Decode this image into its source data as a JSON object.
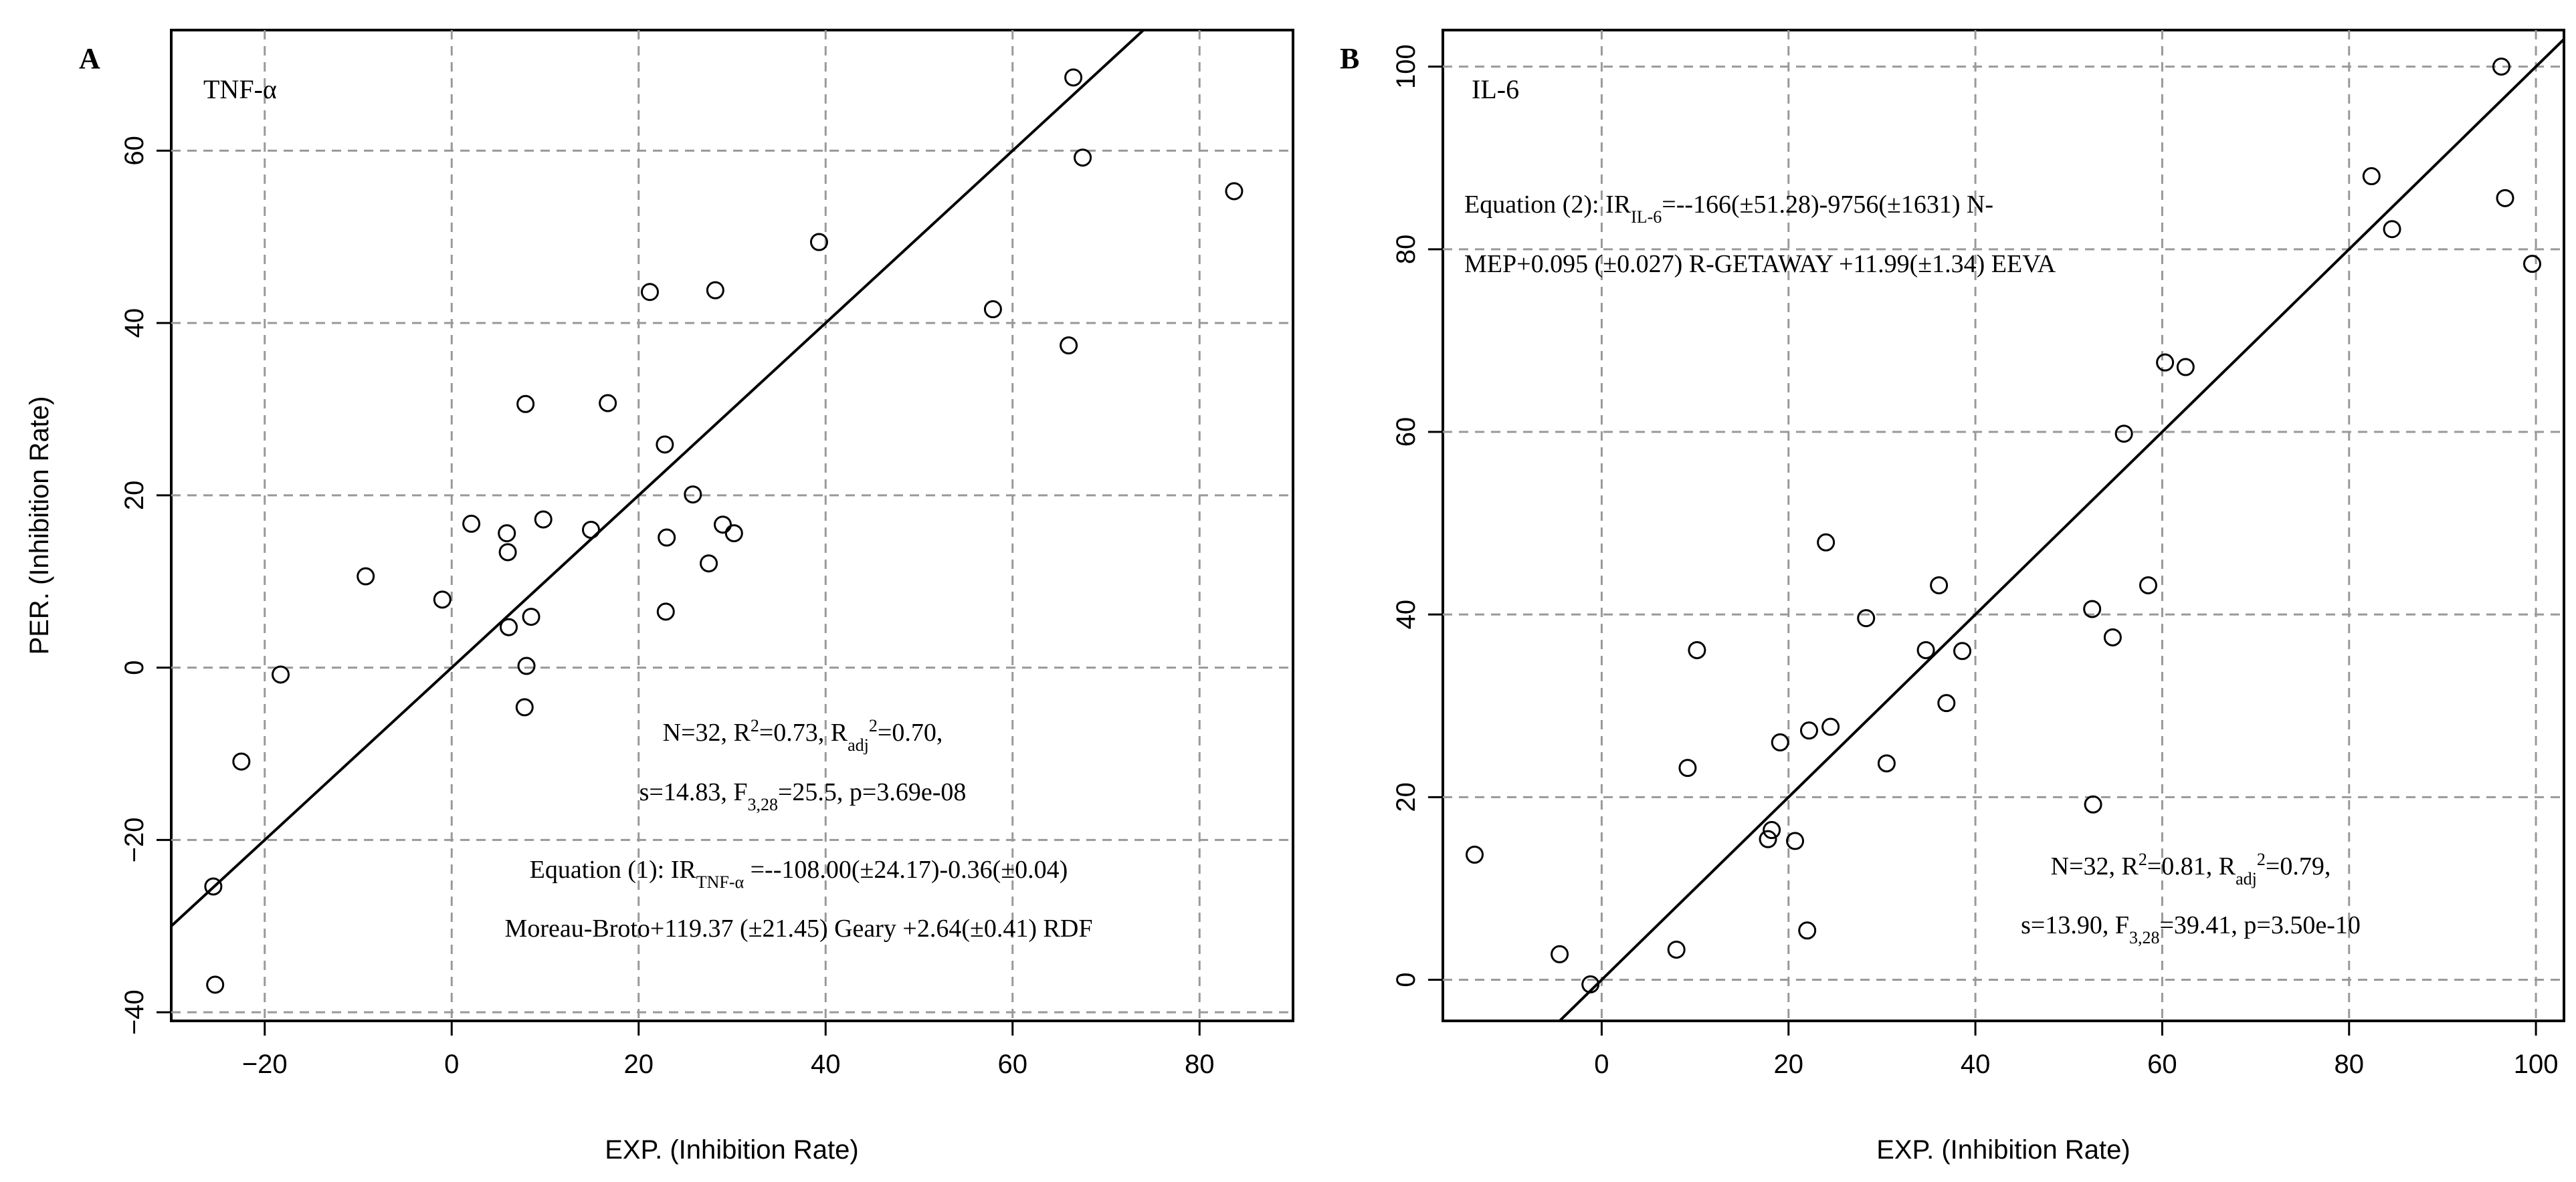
{
  "chart_data": [
    {
      "type": "scatter",
      "panel_label": "A",
      "inset_label": "TNF-α",
      "xlabel": "EXP. (Inhibition Rate)",
      "ylabel": "PER. (Inhibition Rate)",
      "xlim": [
        -30,
        90
      ],
      "ylim": [
        -41,
        74
      ],
      "xticks": [
        -20,
        0,
        20,
        40,
        60,
        80
      ],
      "yticks": [
        -40,
        -20,
        0,
        20,
        40,
        60
      ],
      "xtick_labels": [
        "−20",
        "0",
        "20",
        "40",
        "60",
        "80"
      ],
      "ytick_labels": [
        "−40",
        "−20",
        "0",
        "20",
        "40",
        "60"
      ],
      "grid": true,
      "fit_line": {
        "slope": 1,
        "intercept": 0
      },
      "points": [
        {
          "x": 66.5,
          "y": 68.5
        },
        {
          "x": 67.5,
          "y": 59.2
        },
        {
          "x": 83.7,
          "y": 55.3
        },
        {
          "x": 39.3,
          "y": 49.4
        },
        {
          "x": 21.2,
          "y": 43.6
        },
        {
          "x": 28.2,
          "y": 43.8
        },
        {
          "x": 57.9,
          "y": 41.6
        },
        {
          "x": 66.0,
          "y": 37.4
        },
        {
          "x": 7.9,
          "y": 30.6
        },
        {
          "x": 16.7,
          "y": 30.7
        },
        {
          "x": 22.8,
          "y": 25.9
        },
        {
          "x": 25.8,
          "y": 20.1
        },
        {
          "x": 9.8,
          "y": 17.2
        },
        {
          "x": 2.1,
          "y": 16.7
        },
        {
          "x": 29.0,
          "y": 16.6
        },
        {
          "x": 14.9,
          "y": 16.0
        },
        {
          "x": 30.2,
          "y": 15.6
        },
        {
          "x": 5.9,
          "y": 15.6
        },
        {
          "x": 23.0,
          "y": 15.1
        },
        {
          "x": 6.0,
          "y": 13.4
        },
        {
          "x": 27.5,
          "y": 12.1
        },
        {
          "x": -9.2,
          "y": 10.6
        },
        {
          "x": -1.0,
          "y": 7.9
        },
        {
          "x": 22.9,
          "y": 6.5
        },
        {
          "x": 8.5,
          "y": 5.9
        },
        {
          "x": 6.1,
          "y": 4.7
        },
        {
          "x": 8.0,
          "y": 0.2
        },
        {
          "x": -18.3,
          "y": -0.8
        },
        {
          "x": 7.8,
          "y": -4.6
        },
        {
          "x": -22.5,
          "y": -10.9
        },
        {
          "x": -25.5,
          "y": -25.4
        },
        {
          "x": -25.3,
          "y": -36.8
        }
      ],
      "stats_lines": [
        [
          "N=32, R",
          "2",
          "=0.73, R",
          "adj",
          "2",
          "=0.70,"
        ],
        [
          "s=14.83, F",
          "3,28",
          "=25.5, p=3.69e-08"
        ]
      ],
      "equation_lines": [
        [
          "Equation (1): IR",
          "TNF-α",
          " =--108.00(±24.17)-0.36(±0.04)"
        ],
        [
          "Moreau-Broto+119.37 (±21.45) Geary +2.64(±0.41) RDF"
        ]
      ]
    },
    {
      "type": "scatter",
      "panel_label": "B",
      "inset_label": "IL-6",
      "xlabel": "EXP. (Inhibition Rate)",
      "ylabel": "",
      "xlim": [
        -17,
        103
      ],
      "ylim": [
        -4.5,
        104
      ],
      "xticks": [
        0,
        20,
        40,
        60,
        80,
        100
      ],
      "yticks": [
        0,
        20,
        40,
        60,
        80,
        100
      ],
      "xtick_labels": [
        "0",
        "20",
        "40",
        "60",
        "80",
        "100"
      ],
      "ytick_labels": [
        "0",
        "20",
        "40",
        "60",
        "80",
        "100"
      ],
      "grid": true,
      "fit_line": {
        "slope": 1,
        "intercept": 0
      },
      "points": [
        {
          "x": 96.3,
          "y": 100.0
        },
        {
          "x": 82.4,
          "y": 88.0
        },
        {
          "x": 96.7,
          "y": 85.6
        },
        {
          "x": 84.6,
          "y": 82.2
        },
        {
          "x": 99.6,
          "y": 78.4
        },
        {
          "x": 60.3,
          "y": 67.6
        },
        {
          "x": 62.5,
          "y": 67.1
        },
        {
          "x": 55.9,
          "y": 59.8
        },
        {
          "x": 24.0,
          "y": 47.9
        },
        {
          "x": 36.1,
          "y": 43.2
        },
        {
          "x": 58.5,
          "y": 43.2
        },
        {
          "x": 52.5,
          "y": 40.6
        },
        {
          "x": 28.3,
          "y": 39.6
        },
        {
          "x": 54.7,
          "y": 37.5
        },
        {
          "x": 10.2,
          "y": 36.1
        },
        {
          "x": 34.7,
          "y": 36.1
        },
        {
          "x": 38.6,
          "y": 36.0
        },
        {
          "x": 36.9,
          "y": 30.3
        },
        {
          "x": 24.5,
          "y": 27.7
        },
        {
          "x": 22.2,
          "y": 27.3
        },
        {
          "x": 19.1,
          "y": 26.0
        },
        {
          "x": 30.5,
          "y": 23.7
        },
        {
          "x": 9.2,
          "y": 23.2
        },
        {
          "x": 52.6,
          "y": 19.2
        },
        {
          "x": 18.2,
          "y": 16.4
        },
        {
          "x": 17.8,
          "y": 15.4
        },
        {
          "x": 20.7,
          "y": 15.2
        },
        {
          "x": -13.6,
          "y": 13.7
        },
        {
          "x": 22.0,
          "y": 5.4
        },
        {
          "x": 8.0,
          "y": 3.3
        },
        {
          "x": -4.5,
          "y": 2.8
        },
        {
          "x": -1.2,
          "y": -0.5
        }
      ],
      "stats_lines": [
        [
          "N=32, R",
          "2",
          "=0.81, R",
          "adj",
          "2",
          "=0.79,"
        ],
        [
          "s=13.90, F",
          "3,28",
          "=39.41, p=3.50e-10"
        ]
      ],
      "equation_lines": [
        [
          "Equation (2): IR",
          "IL-6",
          "=--166(±51.28)-9756(±1631) N-"
        ],
        [
          "MEP+0.095 (±0.027) R-GETAWAY +11.99(±1.34) EEVA"
        ]
      ]
    }
  ]
}
